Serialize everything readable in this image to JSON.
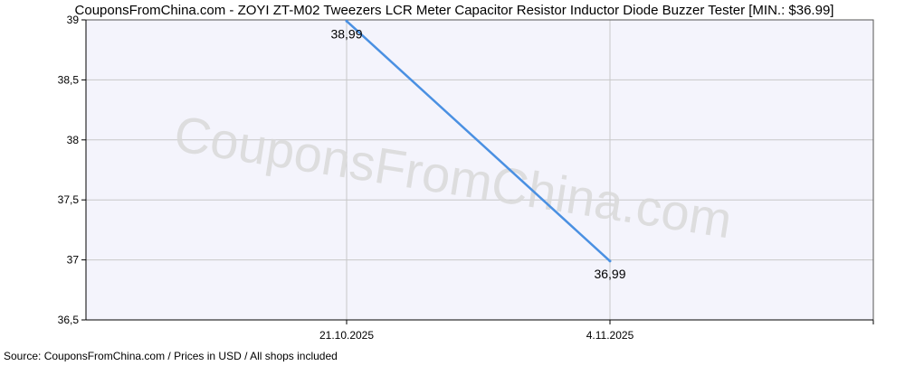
{
  "chart_data": {
    "type": "line",
    "title": "CouponsFromChina.com - ZOYI ZT-M02 Tweezers LCR Meter Capacitor Resistor Inductor Diode Buzzer Tester [MIN.: $36.99]",
    "footer": "Source: CouponsFromChina.com / Prices in USD / All shops included",
    "watermark": "CouponsFromChina.com",
    "x_ticks": [
      "21.10.2025",
      "4.11.2025"
    ],
    "y_ticks": [
      "36,5",
      "37",
      "37,5",
      "38",
      "38,5",
      "39"
    ],
    "y_tick_values": [
      36.5,
      37,
      37.5,
      38,
      38.5,
      39
    ],
    "ylim": [
      36.5,
      39
    ],
    "xlabel": "",
    "ylabel": "",
    "grid": true,
    "series": [
      {
        "x": [
          "21.10.2025",
          "4.11.2025"
        ],
        "values": [
          38.99,
          36.99
        ],
        "labels": [
          "38,99",
          "36,99"
        ],
        "color": "#4a90e2"
      }
    ],
    "colors": {
      "plot_background": "#f4f4fc",
      "grid": "#c8c8c8",
      "axis": "#000000",
      "line": "#4a90e2",
      "watermark": "#d9d9d9"
    }
  }
}
